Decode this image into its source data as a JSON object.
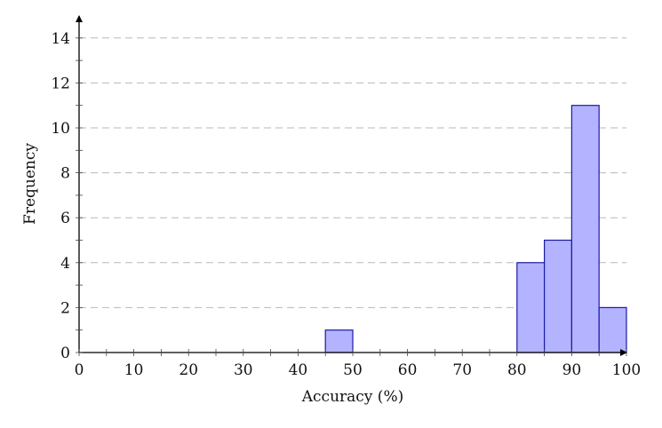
{
  "chart_data": {
    "type": "bar",
    "subtype": "histogram",
    "title": "",
    "xlabel": "Accuracy (%)",
    "ylabel": "Frequency",
    "xlim": [
      0,
      100
    ],
    "ylim": [
      0,
      15
    ],
    "x_ticks": [
      0,
      10,
      20,
      30,
      40,
      50,
      60,
      70,
      80,
      90,
      100
    ],
    "y_ticks": [
      0,
      2,
      4,
      6,
      8,
      10,
      12,
      14
    ],
    "bin_width": 5,
    "bins": [
      {
        "start": 45,
        "end": 50,
        "count": 1
      },
      {
        "start": 80,
        "end": 85,
        "count": 4
      },
      {
        "start": 85,
        "end": 90,
        "count": 5
      },
      {
        "start": 90,
        "end": 95,
        "count": 11
      },
      {
        "start": 95,
        "end": 100,
        "count": 2
      }
    ],
    "categories": [
      "45-50",
      "80-85",
      "85-90",
      "90-95",
      "95-100"
    ],
    "values": [
      1,
      4,
      5,
      11,
      2
    ],
    "grid": {
      "y": true,
      "x": false,
      "style": "dashed"
    },
    "legend": null,
    "colors": {
      "bar_fill": "#b3b3ff",
      "bar_edge": "#1a1aa6",
      "grid": "#b8b8b8",
      "axis": "#000000"
    }
  }
}
